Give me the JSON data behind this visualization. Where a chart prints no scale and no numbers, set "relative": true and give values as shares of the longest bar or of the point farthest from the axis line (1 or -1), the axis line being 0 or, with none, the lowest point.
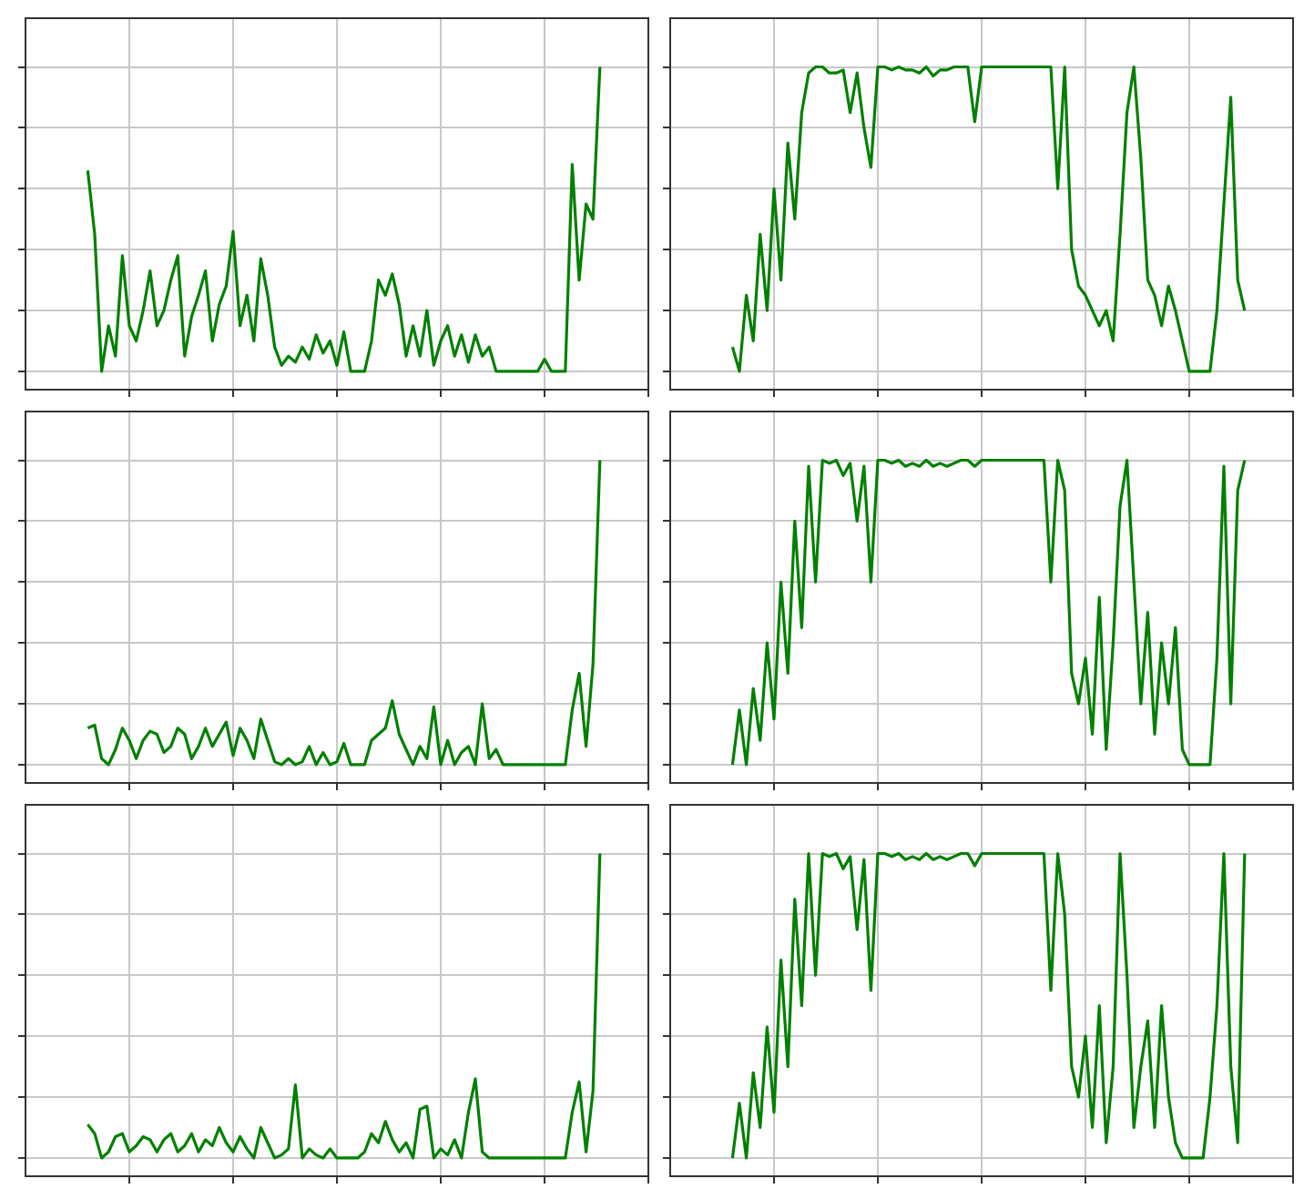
{
  "chart_data": [
    {
      "type": "line",
      "relative": true,
      "grid": true,
      "tick_labels": false,
      "color": "#008000",
      "categories": [
        null,
        null,
        null,
        null,
        null,
        null,
        null,
        null,
        null,
        null,
        null,
        null,
        null,
        null,
        null,
        null,
        null,
        null,
        null,
        null,
        null,
        null,
        null,
        null,
        null,
        null,
        null,
        null,
        null,
        null,
        null,
        null,
        null,
        null,
        null,
        null,
        null,
        null,
        null,
        null,
        null,
        null,
        null,
        null,
        null,
        null,
        null,
        null,
        null,
        null,
        null,
        null,
        null,
        null,
        null,
        null,
        null,
        null,
        null,
        null,
        null,
        null,
        null,
        null,
        null,
        null,
        null,
        null,
        null,
        null,
        null,
        null,
        null,
        null,
        null,
        null,
        null,
        null,
        null,
        null,
        null,
        null,
        null,
        null,
        null,
        null,
        null,
        null,
        null,
        null,
        null
      ],
      "values": [
        null,
        null,
        null,
        null,
        null,
        null,
        null,
        null,
        null,
        0.66,
        0.45,
        0.0,
        0.15,
        0.05,
        0.38,
        0.15,
        0.1,
        0.2,
        0.33,
        0.15,
        0.2,
        0.3,
        0.38,
        0.05,
        0.18,
        0.25,
        0.33,
        0.1,
        0.22,
        0.28,
        0.46,
        0.15,
        0.25,
        0.1,
        0.37,
        0.25,
        0.08,
        0.02,
        0.05,
        0.03,
        0.08,
        0.04,
        0.12,
        0.06,
        0.1,
        0.02,
        0.13,
        0,
        0,
        0,
        0.1,
        0.3,
        0.25,
        0.32,
        0.22,
        0.05,
        0.15,
        0.05,
        0.2,
        0.02,
        0.1,
        0.15,
        0.05,
        0.12,
        0.03,
        0.12,
        0.05,
        0.08,
        0,
        0,
        0,
        0,
        0,
        0,
        0,
        0.04,
        0,
        0,
        0,
        0.68,
        0.3,
        0.55,
        0.5,
        1,
        null,
        null,
        null,
        null,
        null,
        null,
        null
      ]
    },
    {
      "type": "line",
      "relative": true,
      "grid": true,
      "tick_labels": false,
      "color": "#008000",
      "categories": [
        null,
        null,
        null,
        null,
        null,
        null,
        null,
        null,
        null,
        null,
        null,
        null,
        null,
        null,
        null,
        null,
        null,
        null,
        null,
        null,
        null,
        null,
        null,
        null,
        null,
        null,
        null,
        null,
        null,
        null,
        null,
        null,
        null,
        null,
        null,
        null,
        null,
        null,
        null,
        null,
        null,
        null,
        null,
        null,
        null,
        null,
        null,
        null,
        null,
        null,
        null,
        null,
        null,
        null,
        null,
        null,
        null,
        null,
        null,
        null,
        null,
        null,
        null,
        null,
        null,
        null,
        null,
        null,
        null,
        null,
        null,
        null,
        null,
        null,
        null,
        null,
        null,
        null,
        null,
        null,
        null,
        null,
        null,
        null,
        null,
        null,
        null,
        null,
        null,
        null,
        null
      ],
      "values": [
        null,
        null,
        null,
        null,
        null,
        null,
        null,
        null,
        null,
        0.08,
        0.0,
        0.25,
        0.1,
        0.45,
        0.2,
        0.6,
        0.3,
        0.75,
        0.5,
        0.85,
        0.98,
        1,
        1,
        0.98,
        0.98,
        0.99,
        0.85,
        0.98,
        0.8,
        0.67,
        1,
        1,
        0.99,
        1,
        0.99,
        0.99,
        0.98,
        1,
        0.97,
        0.99,
        0.99,
        1,
        1,
        1,
        0.82,
        1,
        1,
        1,
        1,
        1,
        1,
        1,
        1,
        1,
        1,
        1,
        0.6,
        1,
        0.4,
        0.28,
        0.25,
        0.2,
        0.15,
        0.2,
        0.1,
        0.45,
        0.85,
        1,
        0.7,
        0.3,
        0.25,
        0.15,
        0.28,
        0.2,
        0.1,
        0.0,
        0.0,
        0.0,
        0.0,
        0.2,
        0.55,
        0.9,
        0.3,
        0.2,
        null,
        null,
        null,
        null,
        null,
        null,
        null
      ]
    },
    {
      "type": "line",
      "relative": true,
      "grid": true,
      "tick_labels": false,
      "color": "#008000",
      "categories": [
        null,
        null,
        null,
        null,
        null,
        null,
        null,
        null,
        null,
        null,
        null,
        null,
        null,
        null,
        null,
        null,
        null,
        null,
        null,
        null,
        null,
        null,
        null,
        null,
        null,
        null,
        null,
        null,
        null,
        null,
        null,
        null,
        null,
        null,
        null,
        null,
        null,
        null,
        null,
        null,
        null,
        null,
        null,
        null,
        null,
        null,
        null,
        null,
        null,
        null,
        null,
        null,
        null,
        null,
        null,
        null,
        null,
        null,
        null,
        null,
        null,
        null,
        null,
        null,
        null,
        null,
        null,
        null,
        null,
        null,
        null,
        null,
        null,
        null,
        null,
        null,
        null,
        null,
        null,
        null,
        null,
        null,
        null,
        null,
        null,
        null,
        null,
        null,
        null,
        null,
        null
      ],
      "values": [
        null,
        null,
        null,
        null,
        null,
        null,
        null,
        null,
        null,
        0.12,
        0.13,
        0.02,
        0.0,
        0.05,
        0.12,
        0.08,
        0.02,
        0.08,
        0.11,
        0.1,
        0.04,
        0.06,
        0.12,
        0.1,
        0.02,
        0.06,
        0.12,
        0.06,
        0.1,
        0.14,
        0.03,
        0.12,
        0.08,
        0.02,
        0.15,
        0.08,
        0.01,
        0.0,
        0.02,
        0.0,
        0.01,
        0.06,
        0.0,
        0.04,
        0.0,
        0.01,
        0.07,
        0.0,
        0.0,
        0.0,
        0.08,
        0.1,
        0.12,
        0.21,
        0.1,
        0.05,
        0.0,
        0.06,
        0.02,
        0.19,
        0.0,
        0.08,
        0.0,
        0.04,
        0.06,
        0.0,
        0.2,
        0.02,
        0.05,
        0.0,
        0,
        0,
        0,
        0,
        0,
        0,
        0,
        0,
        0,
        0.18,
        0.3,
        0.06,
        0.33,
        1,
        null,
        null,
        null,
        null,
        null,
        null,
        null
      ]
    },
    {
      "type": "line",
      "relative": true,
      "grid": true,
      "tick_labels": false,
      "color": "#008000",
      "categories": [
        null,
        null,
        null,
        null,
        null,
        null,
        null,
        null,
        null,
        null,
        null,
        null,
        null,
        null,
        null,
        null,
        null,
        null,
        null,
        null,
        null,
        null,
        null,
        null,
        null,
        null,
        null,
        null,
        null,
        null,
        null,
        null,
        null,
        null,
        null,
        null,
        null,
        null,
        null,
        null,
        null,
        null,
        null,
        null,
        null,
        null,
        null,
        null,
        null,
        null,
        null,
        null,
        null,
        null,
        null,
        null,
        null,
        null,
        null,
        null,
        null,
        null,
        null,
        null,
        null,
        null,
        null,
        null,
        null,
        null,
        null,
        null,
        null,
        null,
        null,
        null,
        null,
        null,
        null,
        null,
        null,
        null,
        null,
        null,
        null,
        null,
        null,
        null,
        null,
        null,
        null
      ],
      "values": [
        null,
        null,
        null,
        null,
        null,
        null,
        null,
        null,
        null,
        0.0,
        0.18,
        0.0,
        0.25,
        0.08,
        0.4,
        0.15,
        0.6,
        0.3,
        0.8,
        0.45,
        0.98,
        0.6,
        1,
        0.99,
        1,
        0.95,
        0.99,
        0.8,
        0.98,
        0.6,
        1,
        1,
        0.99,
        1,
        0.98,
        0.99,
        0.98,
        1,
        0.98,
        0.99,
        0.98,
        0.99,
        1,
        1,
        0.98,
        1,
        1,
        1,
        1,
        1,
        1,
        1,
        1,
        1,
        1,
        0.6,
        1,
        0.9,
        0.3,
        0.2,
        0.35,
        0.1,
        0.55,
        0.05,
        0.4,
        0.85,
        1,
        0.6,
        0.2,
        0.5,
        0.1,
        0.4,
        0.2,
        0.45,
        0.05,
        0.0,
        0.0,
        0.0,
        0.0,
        0.35,
        0.98,
        0.2,
        0.9,
        1,
        null,
        null,
        null,
        null,
        null,
        null,
        null
      ]
    },
    {
      "type": "line",
      "relative": true,
      "grid": true,
      "tick_labels": false,
      "color": "#008000",
      "categories": [
        null,
        null,
        null,
        null,
        null,
        null,
        null,
        null,
        null,
        null,
        null,
        null,
        null,
        null,
        null,
        null,
        null,
        null,
        null,
        null,
        null,
        null,
        null,
        null,
        null,
        null,
        null,
        null,
        null,
        null,
        null,
        null,
        null,
        null,
        null,
        null,
        null,
        null,
        null,
        null,
        null,
        null,
        null,
        null,
        null,
        null,
        null,
        null,
        null,
        null,
        null,
        null,
        null,
        null,
        null,
        null,
        null,
        null,
        null,
        null,
        null,
        null,
        null,
        null,
        null,
        null,
        null,
        null,
        null,
        null,
        null,
        null,
        null,
        null,
        null,
        null,
        null,
        null,
        null,
        null,
        null,
        null,
        null,
        null,
        null,
        null,
        null,
        null,
        null,
        null,
        null
      ],
      "values": [
        null,
        null,
        null,
        null,
        null,
        null,
        null,
        null,
        null,
        0.11,
        0.08,
        0.0,
        0.02,
        0.07,
        0.08,
        0.02,
        0.04,
        0.07,
        0.06,
        0.02,
        0.06,
        0.08,
        0.02,
        0.04,
        0.08,
        0.02,
        0.06,
        0.04,
        0.1,
        0.05,
        0.02,
        0.07,
        0.03,
        0.0,
        0.1,
        0.05,
        0.0,
        0.01,
        0.03,
        0.24,
        0.0,
        0.03,
        0.01,
        0.0,
        0.03,
        0.0,
        0.0,
        0.0,
        0.0,
        0.02,
        0.08,
        0.05,
        0.12,
        0.06,
        0.02,
        0.05,
        0.0,
        0.16,
        0.17,
        0.0,
        0.03,
        0.01,
        0.06,
        0.0,
        0.15,
        0.26,
        0.02,
        0.0,
        0.0,
        0,
        0,
        0,
        0,
        0,
        0,
        0,
        0,
        0,
        0.0,
        0.15,
        0.25,
        0.02,
        0.22,
        1,
        null,
        null,
        null,
        null,
        null,
        null,
        null
      ]
    },
    {
      "type": "line",
      "relative": true,
      "grid": true,
      "tick_labels": false,
      "color": "#008000",
      "categories": [
        null,
        null,
        null,
        null,
        null,
        null,
        null,
        null,
        null,
        null,
        null,
        null,
        null,
        null,
        null,
        null,
        null,
        null,
        null,
        null,
        null,
        null,
        null,
        null,
        null,
        null,
        null,
        null,
        null,
        null,
        null,
        null,
        null,
        null,
        null,
        null,
        null,
        null,
        null,
        null,
        null,
        null,
        null,
        null,
        null,
        null,
        null,
        null,
        null,
        null,
        null,
        null,
        null,
        null,
        null,
        null,
        null,
        null,
        null,
        null,
        null,
        null,
        null,
        null,
        null,
        null,
        null,
        null,
        null,
        null,
        null,
        null,
        null,
        null,
        null,
        null,
        null,
        null,
        null,
        null,
        null,
        null,
        null,
        null,
        null,
        null,
        null,
        null,
        null,
        null,
        null
      ],
      "values": [
        null,
        null,
        null,
        null,
        null,
        null,
        null,
        null,
        null,
        0.0,
        0.18,
        0.0,
        0.28,
        0.1,
        0.43,
        0.15,
        0.65,
        0.3,
        0.85,
        0.5,
        1,
        0.6,
        1,
        0.99,
        1,
        0.95,
        0.99,
        0.75,
        0.98,
        0.55,
        1,
        1,
        0.99,
        1,
        0.98,
        0.99,
        0.98,
        1,
        0.98,
        0.99,
        0.98,
        0.99,
        1,
        1,
        0.96,
        1,
        1,
        1,
        1,
        1,
        1,
        1,
        1,
        1,
        1,
        0.55,
        1,
        0.8,
        0.3,
        0.2,
        0.4,
        0.1,
        0.5,
        0.05,
        0.3,
        1,
        0.6,
        0.1,
        0.3,
        0.45,
        0.1,
        0.5,
        0.2,
        0.05,
        0.0,
        0.0,
        0.0,
        0.0,
        0.2,
        0.5,
        1,
        0.3,
        0.05,
        1,
        null,
        null,
        null,
        null,
        null,
        null,
        null
      ]
    }
  ]
}
